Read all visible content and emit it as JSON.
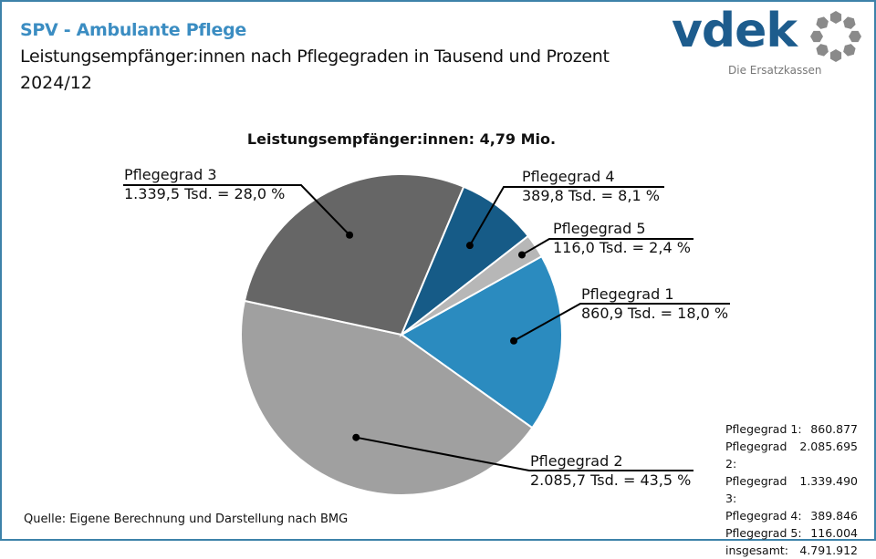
{
  "header": {
    "title": "SPV - Ambulante Pflege",
    "subtitle": "Leistungsempfänger:innen  nach Pflegegraden in Tausend und Prozent",
    "period": "2024/12"
  },
  "logo": {
    "word": "vdek",
    "tagline": "Die Ersatzkassen",
    "icon": "ring-of-hexagons-icon"
  },
  "total_label": "Leistungsempfänger:innen:  4,79  Mio.",
  "chart_data": {
    "type": "pie",
    "title": "Leistungsempfänger:innen:  4,79  Mio.",
    "slices": [
      {
        "name": "Pflegegrad 1",
        "value": 860.9,
        "percent": 18.0,
        "label": "860,9  Tsd. = 18,0  %",
        "color": "#2b8bbf"
      },
      {
        "name": "Pflegegrad 2",
        "value": 2085.7,
        "percent": 43.5,
        "label": "2.085,7  Tsd. = 43,5  %",
        "color": "#a0a0a0"
      },
      {
        "name": "Pflegegrad 3",
        "value": 1339.5,
        "percent": 28.0,
        "label": "1.339,5  Tsd. = 28,0  %",
        "color": "#666666"
      },
      {
        "name": "Pflegegrad 4",
        "value": 389.8,
        "percent": 8.1,
        "label": "389,8  Tsd. = 8,1  %",
        "color": "#165b87"
      },
      {
        "name": "Pflegegrad 5",
        "value": 116.0,
        "percent": 2.4,
        "label": "116,0  Tsd. = 2,4  %",
        "color": "#b7b7b7"
      }
    ],
    "unit": "Tsd."
  },
  "summary": [
    {
      "label": "Pflegegrad 1:",
      "value": "860.877"
    },
    {
      "label": "Pflegegrad 2:",
      "value": "2.085.695"
    },
    {
      "label": "Pflegegrad 3:",
      "value": "1.339.490"
    },
    {
      "label": "Pflegegrad 4:",
      "value": "389.846"
    },
    {
      "label": "Pflegegrad 5:",
      "value": "116.004"
    },
    {
      "label": "insgesamt:",
      "value": "4.791.912"
    }
  ],
  "source": "Quelle: Eigene Berechnung und Darstellung nach BMG"
}
